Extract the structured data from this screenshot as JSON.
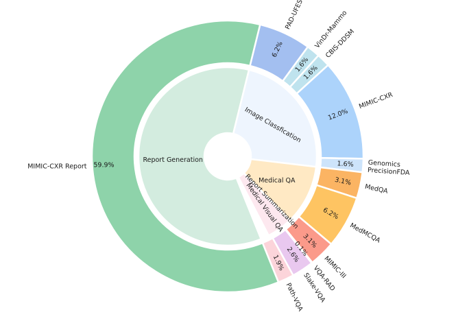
{
  "chart_data": {
    "type": "pie",
    "subtype": "nested-donut",
    "inner": [
      {
        "label": "Report Generation",
        "value": 59.9,
        "color": "#d3ecdf"
      },
      {
        "label": "Image Classfication",
        "value": 23.0,
        "color": "#eef5fe"
      },
      {
        "label": "Medical QA",
        "value": 10.8,
        "color": "#ffe9c4"
      },
      {
        "label": "Report Summarization",
        "value": 0.1,
        "color": "#fbe8e8"
      },
      {
        "label": "Medical Visual QA",
        "value": 4.6,
        "color": "#fde8ef"
      }
    ],
    "outer": [
      {
        "label": "MIMIC-CXR Report",
        "value": 59.9,
        "pct": "59.9%",
        "color": "#8ed3aa"
      },
      {
        "label": "PAD-UFES-20",
        "value": 6.2,
        "pct": "6.2%",
        "color": "#a3bff0"
      },
      {
        "label": "VinDr-Mammo",
        "value": 1.6,
        "pct": "1.6%",
        "color": "#bfe3ee"
      },
      {
        "label": "CBIS-DDSM",
        "value": 1.6,
        "pct": "1.6%",
        "color": "#bfe3ee"
      },
      {
        "label": "MIMIC-CXR",
        "value": 12.0,
        "pct": "12.0%",
        "color": "#acd3fb"
      },
      {
        "label": "Genomics PrecisionFDA",
        "value": 1.6,
        "pct": "1.6%",
        "color": "#cde4fb"
      },
      {
        "label": "MedQA",
        "value": 3.1,
        "pct": "3.1%",
        "color": "#fbb463"
      },
      {
        "label": "MedMCQA",
        "value": 6.2,
        "pct": "6.2%",
        "color": "#fec462"
      },
      {
        "label": "MIMIC-III",
        "value": 3.1,
        "pct": "3.1%",
        "color": "#fb9a8a"
      },
      {
        "label": "VQA-RAD",
        "value": 0.1,
        "pct": "0.1%",
        "color": "#f4d7d7"
      },
      {
        "label": "Slake-VQA",
        "value": 2.6,
        "pct": "2.6%",
        "color": "#e9c8ef"
      },
      {
        "label": "Path-VQA",
        "value": 1.9,
        "pct": "1.9%",
        "color": "#fcd4da"
      }
    ]
  }
}
